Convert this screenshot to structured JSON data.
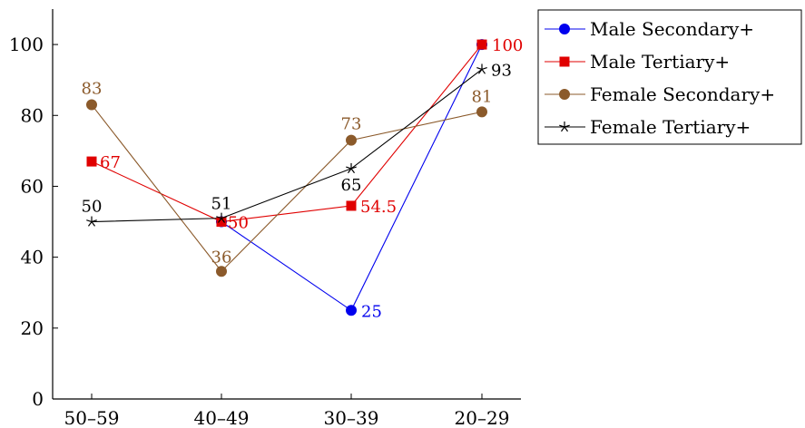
{
  "chart_data": {
    "type": "line",
    "title": "",
    "xlabel": "",
    "ylabel": "",
    "categories": [
      "50–59",
      "40–49",
      "30–39",
      "20–29"
    ],
    "ylim": [
      0,
      110
    ],
    "yticks": [
      0,
      20,
      40,
      60,
      80,
      100
    ],
    "grid": false,
    "legend_position": "outside-top-right",
    "series": [
      {
        "name": "Male Secondary+",
        "color": "#0000ee",
        "marker": "circle",
        "values": [
          null,
          50,
          25,
          100
        ],
        "labels": [
          null,
          null,
          "25",
          null
        ]
      },
      {
        "name": "Male Tertiary+",
        "color": "#e00000",
        "marker": "square",
        "values": [
          67,
          50,
          54.5,
          100
        ],
        "labels": [
          "67",
          "50",
          "54.5",
          "100"
        ]
      },
      {
        "name": "Female Secondary+",
        "color": "#8b5a2b",
        "marker": "circle",
        "values": [
          83,
          36,
          73,
          81
        ],
        "labels": [
          "83",
          "36",
          "73",
          "81"
        ]
      },
      {
        "name": "Female Tertiary+",
        "color": "#000000",
        "marker": "star",
        "values": [
          50,
          51,
          65,
          93
        ],
        "labels": [
          "50",
          "51",
          "65",
          "93"
        ]
      }
    ]
  }
}
